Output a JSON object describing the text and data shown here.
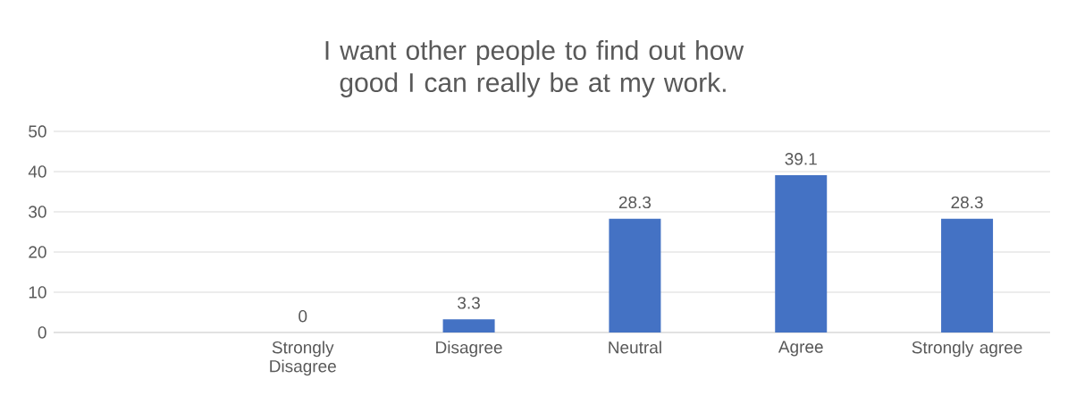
{
  "chart_data": {
    "type": "bar",
    "title": "I want other people to find out how good I can really be at my work.",
    "categories": [
      null,
      "Strongly Disagree",
      "Disagree",
      "Neutral",
      "Agree",
      "Strongly agree"
    ],
    "values": [
      null,
      0,
      3.3,
      28.3,
      39.1,
      28.3
    ],
    "color": "#4472c4",
    "ylim": [
      0,
      50
    ],
    "yticks": [
      0,
      10,
      20,
      30,
      40,
      50
    ],
    "grid": "y",
    "data_labels": true
  }
}
